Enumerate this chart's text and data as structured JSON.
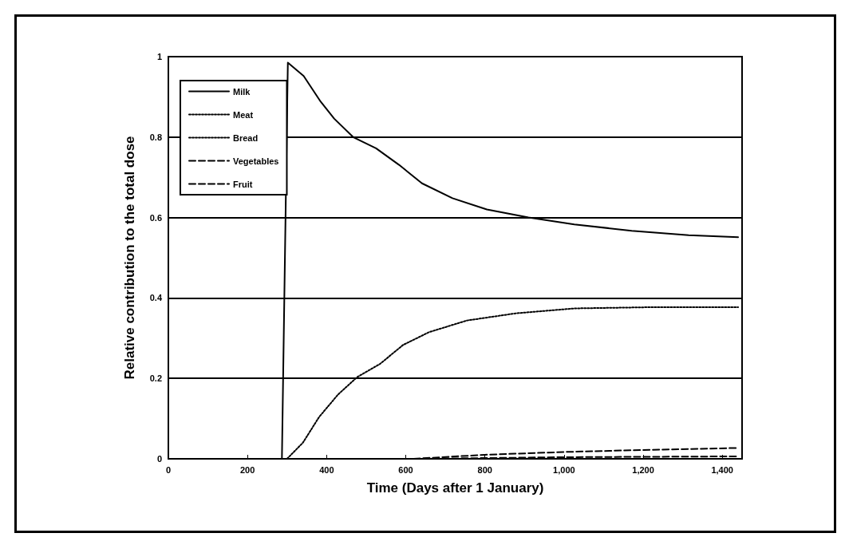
{
  "chart_data": {
    "type": "line",
    "xlabel": "Time (Days after 1 January)",
    "ylabel": "Relative contribution to the total dose",
    "xlim": [
      0,
      1450
    ],
    "xticks": [
      0,
      200,
      400,
      600,
      800,
      {
        "value": 1000,
        "label": "1,000"
      },
      {
        "value": 1200,
        "label": "1,200"
      },
      {
        "value": 1400,
        "label": "1,400"
      }
    ],
    "ylim": [
      0,
      1
    ],
    "yticks": [
      0,
      0.2,
      0.4,
      0.6,
      0.8,
      1
    ],
    "grid": "y",
    "legend": "top left",
    "marker": "none",
    "series": [
      {
        "name": "Milk",
        "color": "#000000",
        "line_style": "solid",
        "x": [
          287,
          302,
          342,
          385,
          419,
          467,
          525,
          583,
          641,
          718,
          805,
          910,
          1026,
          1171,
          1315,
          1440
        ],
        "values": [
          0,
          0.985,
          0.952,
          0.888,
          0.846,
          0.8,
          0.772,
          0.731,
          0.685,
          0.648,
          0.62,
          0.6,
          0.583,
          0.567,
          0.556,
          0.551
        ]
      },
      {
        "name": "Meat",
        "color": "#000000",
        "line_style": "dotted",
        "x": [
          300,
          340,
          381,
          429,
          477,
          535,
          593,
          659,
          755,
          880,
          1026,
          1219,
          1440
        ],
        "values": [
          0,
          0.04,
          0.104,
          0.16,
          0.203,
          0.236,
          0.283,
          0.315,
          0.344,
          0.362,
          0.374,
          0.377,
          0.377
        ]
      },
      {
        "name": "Bread",
        "color": "#000000",
        "line_style": "dotted"
      },
      {
        "name": "Vegetables",
        "color": "#000000",
        "line_style": "dashed",
        "x": [
          620,
          800,
          1000,
          1200,
          1440
        ],
        "values": [
          0,
          0.01,
          0.017,
          0.022,
          0.027
        ]
      },
      {
        "name": "Fruit",
        "color": "#000000",
        "line_style": "dashed",
        "x": [
          620,
          1000,
          1200,
          1440
        ],
        "values": [
          0,
          0.004,
          0.005,
          0.006
        ]
      }
    ]
  }
}
